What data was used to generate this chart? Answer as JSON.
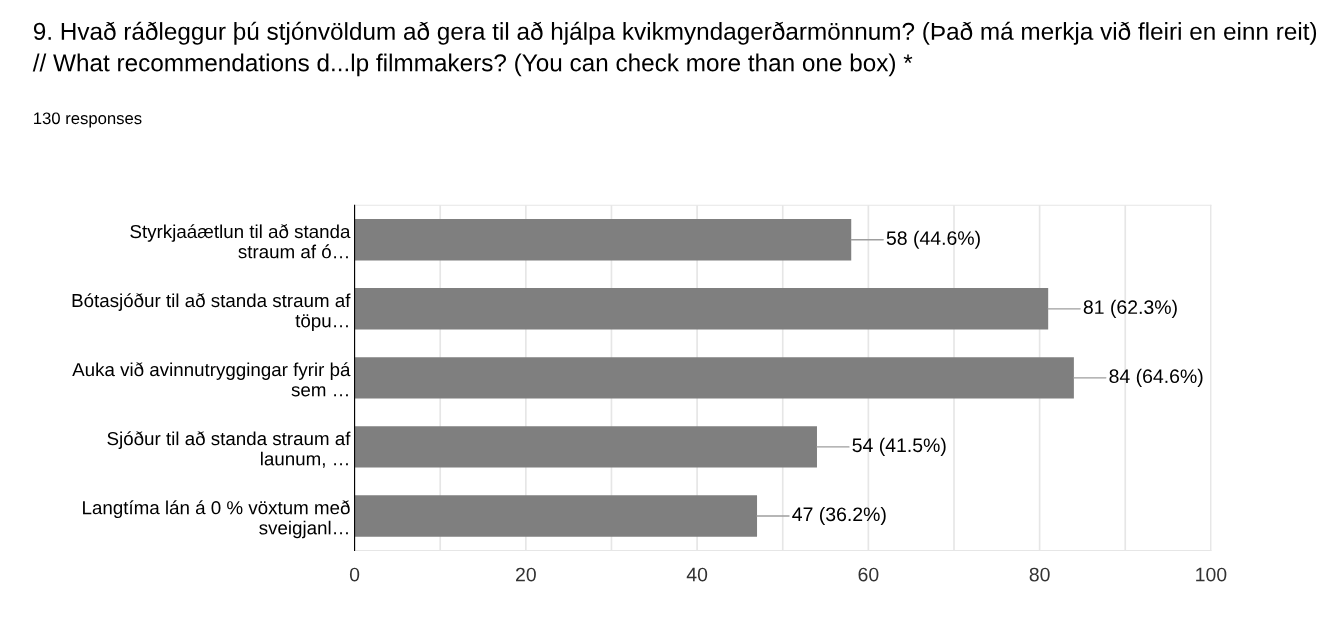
{
  "chart_data": {
    "type": "bar",
    "orientation": "horizontal",
    "title": "9. Hvað ráðleggur þú stjónvöldum að gera til að hjálpa kvikmyndagerðarmönnum? (Það má merkja við fleiri en einn reit) // What recommendations d...lp filmmakers? (You can check more than one box) *",
    "subtitle": "130 responses",
    "categories": [
      "Styrkjaáætlun til að standa\nstraum af ó…",
      "Bótasjóður til að standa straum af\ntöpu…",
      "Auka við avinnutryggingar fyrir þá\nsem …",
      "Sjóður til að standa straum af\nlaunum, …",
      "Langtíma lán á 0 % vöxtum með\nsveigjanl…"
    ],
    "values": [
      58,
      81,
      84,
      54,
      47
    ],
    "value_labels": [
      "58 (44.6%)",
      "81 (62.3%)",
      "84 (64.6%)",
      "54 (41.5%)",
      "47 (36.2%)"
    ],
    "color": "#7f7f7f",
    "xlim": [
      0,
      100
    ],
    "xticks": [
      0,
      {
        "value": 10,
        "label": null
      },
      20,
      {
        "value": 30,
        "label": null
      },
      40,
      {
        "value": 50,
        "label": null
      },
      60,
      {
        "value": 70,
        "label": null
      },
      80,
      {
        "value": 90,
        "label": null
      },
      100
    ],
    "grid": "x"
  }
}
